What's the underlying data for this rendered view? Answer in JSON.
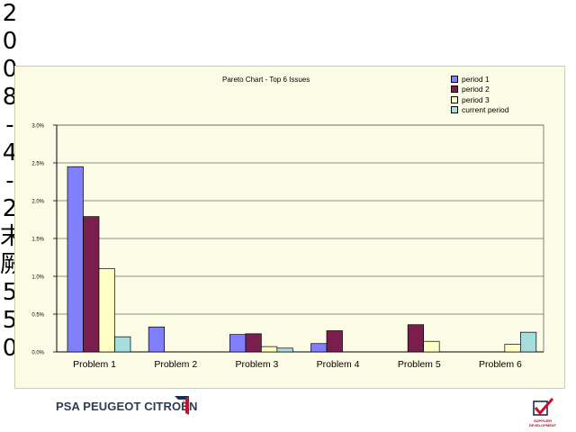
{
  "side_stamp": [
    "2",
    "0",
    "0",
    "8",
    "-",
    "4",
    "-",
    "2",
    "末",
    "厥",
    "5",
    "5",
    "0"
  ],
  "chart_data": {
    "type": "bar",
    "title": "Pareto Chart - Top 6 Issues",
    "xlabel": "",
    "ylabel": "",
    "categories": [
      "Problem 1",
      "Problem 2",
      "Problem 3",
      "Problem 4",
      "Problem 5",
      "Problem 6"
    ],
    "series": [
      {
        "name": "period 1",
        "color": "#8080ff",
        "values": [
          2.45,
          0.33,
          0.23,
          0.11,
          0,
          0
        ]
      },
      {
        "name": "period 2",
        "color": "#7a1f4d",
        "values": [
          1.79,
          0,
          0.24,
          0.28,
          0.36,
          0
        ]
      },
      {
        "name": "period 3",
        "color": "#ffffc4",
        "values": [
          1.1,
          0,
          0.07,
          0,
          0.14,
          0.1
        ]
      },
      {
        "name": "current period",
        "color": "#a6dede",
        "values": [
          0.2,
          0,
          0.05,
          0,
          0,
          0.26
        ]
      }
    ],
    "ylim": [
      0,
      3.0
    ],
    "yticks": [
      0.0,
      0.5,
      1.0,
      1.5,
      2.0,
      2.5,
      3.0
    ],
    "ytick_labels": [
      "0.0%",
      "0.5%",
      "1.0%",
      "1.5%",
      "2.0%",
      "2.5%",
      "3.0%"
    ],
    "grid": true,
    "legend_position": "top-right"
  },
  "footer": {
    "logo_text": "PSA PEUGEOT CITROËN",
    "badge_text_line1": "SUPPLIER",
    "badge_text_line2": "DEVELOPMENT"
  }
}
